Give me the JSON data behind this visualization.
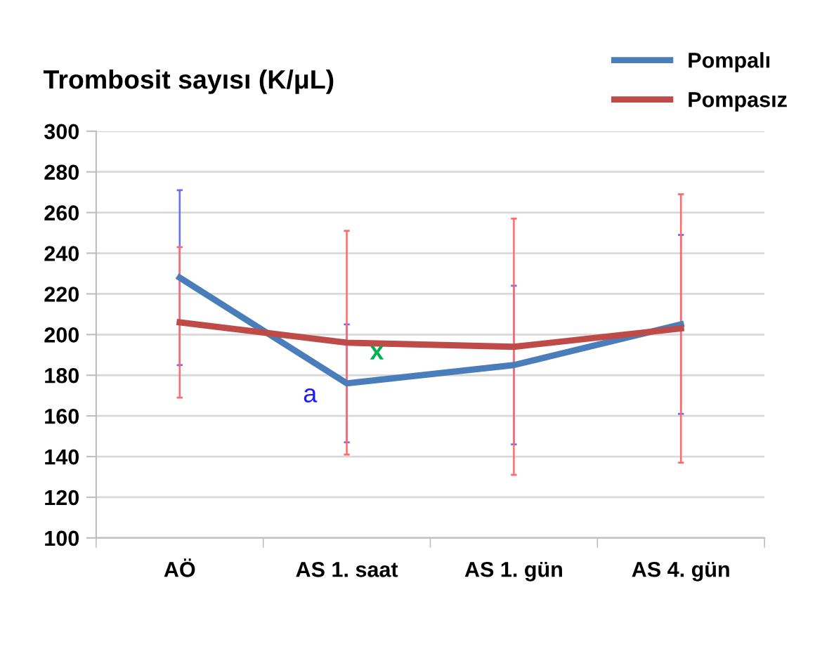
{
  "chart_data": {
    "type": "line",
    "title": "Trombosit sayısı (K/μL)",
    "categories": [
      "AÖ",
      "AS 1. saat",
      "AS 1. gün",
      "AS 4. gün"
    ],
    "series": [
      {
        "name": "Pompalı",
        "color": "#4a7ebb",
        "values": [
          228,
          176,
          185,
          205
        ],
        "errors": [
          43,
          29,
          39,
          44
        ]
      },
      {
        "name": "Pompasız",
        "color": "#be4b48",
        "values": [
          206,
          196,
          194,
          203
        ],
        "errors": [
          37,
          55,
          63,
          66
        ]
      }
    ],
    "annotations": [
      {
        "text": "a",
        "x": "AS 1. saat",
        "y": 176
      },
      {
        "text": "x",
        "x": "AS 1. saat",
        "y": 196
      }
    ],
    "ylim": [
      100,
      300
    ],
    "yticks": [
      100,
      120,
      140,
      160,
      180,
      200,
      220,
      240,
      260,
      280,
      300
    ],
    "grid": "y",
    "legend": "top right",
    "marker": "none"
  }
}
